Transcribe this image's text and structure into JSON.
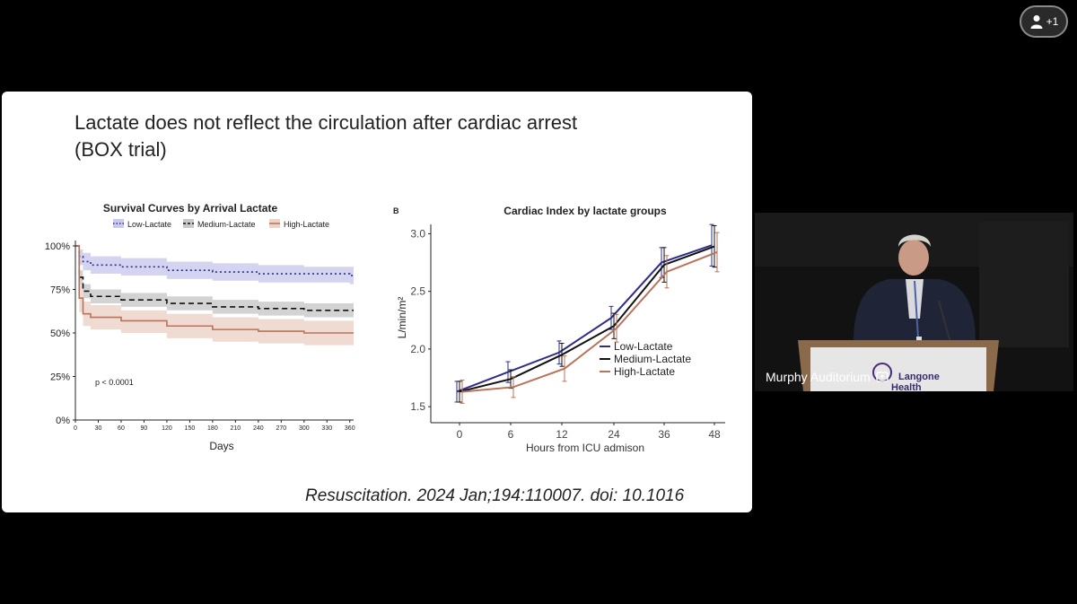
{
  "participants": {
    "count_label": "+1",
    "icon": "person-icon"
  },
  "slide": {
    "title_line1": "Lactate does not reflect the circulation after cardiac arrest",
    "title_line2": "(BOX trial)",
    "citation": "Resuscitation. 2024 Jan;194:110007. doi: 10.1016"
  },
  "video": {
    "label": "Murphy Auditorium",
    "sign_text_line1": "Langone",
    "sign_text_line2": "Health",
    "icon": "screen-share-icon"
  },
  "colors": {
    "low": "#2e2e8a",
    "medium": "#111111",
    "high": "#b8735a",
    "low_band": "#c9c9ee",
    "medium_band": "#c8c8c8",
    "high_band": "#ecd2c8"
  },
  "chart_data": [
    {
      "type": "line",
      "title": "Survival Curves by Arrival Lactate",
      "xlabel": "Days",
      "ylabel": "",
      "x_ticks": [
        "0",
        "30",
        "60",
        "90",
        "120",
        "150",
        "180",
        "210",
        "240",
        "270",
        "300",
        "330",
        "360"
      ],
      "y_ticks": [
        "0%",
        "25%",
        "50%",
        "75%",
        "100%"
      ],
      "xlim": [
        0,
        365
      ],
      "ylim": [
        0,
        100
      ],
      "legend_position": "top",
      "annotation": "p < 0.0001",
      "series": [
        {
          "name": "Low-Lactate",
          "x": [
            0,
            5,
            10,
            20,
            60,
            120,
            180,
            240,
            300,
            360
          ],
          "values": [
            100,
            94,
            91,
            89,
            88,
            86,
            85,
            84,
            84,
            83
          ],
          "lower": [
            100,
            89,
            86,
            84,
            83,
            81,
            80,
            79,
            79,
            78
          ],
          "upper": [
            100,
            98,
            96,
            94,
            93,
            91,
            90,
            89,
            88,
            88
          ]
        },
        {
          "name": "Medium-Lactate",
          "x": [
            0,
            5,
            10,
            20,
            60,
            120,
            180,
            240,
            300,
            360
          ],
          "values": [
            100,
            82,
            74,
            71,
            69,
            67,
            65,
            64,
            63,
            63
          ],
          "lower": [
            100,
            78,
            70,
            67,
            65,
            63,
            61,
            60,
            59,
            59
          ],
          "upper": [
            100,
            86,
            78,
            75,
            73,
            71,
            69,
            68,
            67,
            67
          ]
        },
        {
          "name": "High-Lactate",
          "x": [
            0,
            5,
            10,
            20,
            60,
            120,
            180,
            240,
            300,
            360
          ],
          "values": [
            100,
            70,
            61,
            59,
            57,
            54,
            52,
            51,
            50,
            50
          ],
          "lower": [
            100,
            62,
            54,
            52,
            50,
            47,
            45,
            44,
            43,
            43
          ],
          "upper": [
            100,
            78,
            68,
            66,
            63,
            61,
            59,
            58,
            57,
            57
          ]
        }
      ]
    },
    {
      "type": "line",
      "panel_label": "B",
      "title": "Cardiac Index by lactate groups",
      "xlabel": "Hours from ICU admison",
      "ylabel": "L/min/m²",
      "categories": [
        "0",
        "6",
        "12",
        "24",
        "36",
        "48"
      ],
      "y_ticks": [
        "1.5",
        "2.0",
        "2.5",
        "3.0"
      ],
      "ylim": [
        1.4,
        3.05
      ],
      "legend_position": "right",
      "series": [
        {
          "name": "Low-Lactate",
          "values": [
            1.63,
            1.8,
            1.97,
            2.27,
            2.75,
            2.9
          ],
          "err": [
            0.09,
            0.09,
            0.1,
            0.1,
            0.13,
            0.18
          ]
        },
        {
          "name": "Medium-Lactate",
          "values": [
            1.63,
            1.74,
            1.95,
            2.2,
            2.73,
            2.89
          ],
          "err": [
            0.09,
            0.08,
            0.1,
            0.11,
            0.15,
            0.18
          ]
        },
        {
          "name": "High-Lactate",
          "values": [
            1.63,
            1.67,
            1.83,
            2.18,
            2.67,
            2.84
          ],
          "err": [
            0.1,
            0.09,
            0.11,
            0.12,
            0.14,
            0.17
          ]
        }
      ]
    }
  ]
}
